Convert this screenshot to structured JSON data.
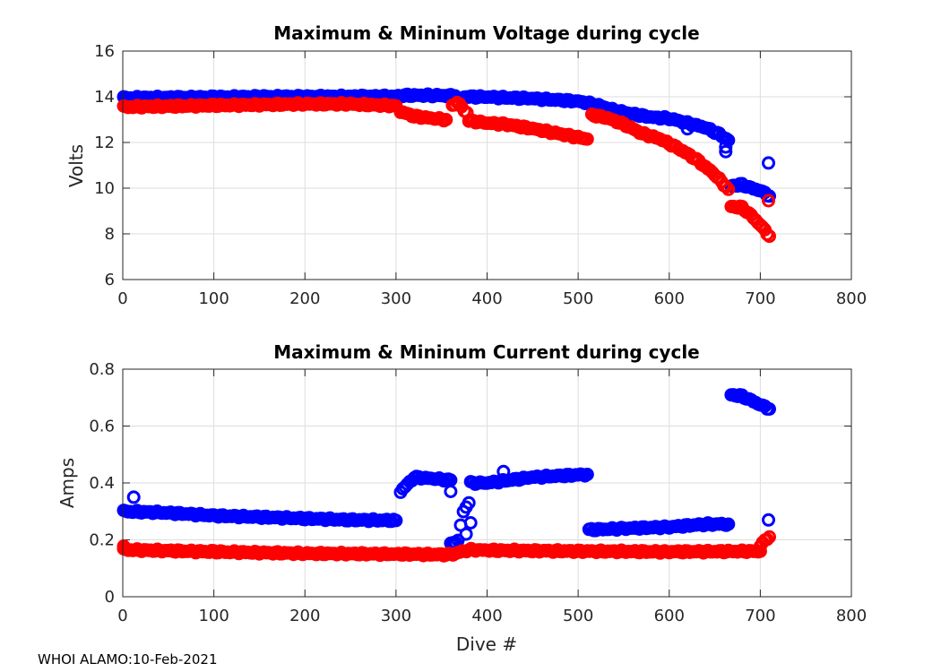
{
  "footer_text": "WHOI ALAMO:10-Feb-2021",
  "shared_xlabel": "Dive #",
  "colors": {
    "max": "#0000ff",
    "min": "#ff0000"
  },
  "chart_data": [
    {
      "type": "scatter",
      "title": "Maximum & Mininum Voltage during cycle",
      "xlabel": "",
      "ylabel": "Volts",
      "xlim": [
        0,
        800
      ],
      "ylim": [
        6,
        16
      ],
      "xticks": [
        0,
        100,
        200,
        300,
        400,
        500,
        600,
        700,
        800
      ],
      "yticks": [
        6,
        8,
        10,
        12,
        14,
        16
      ],
      "grid": true,
      "series": [
        {
          "name": "Maximum",
          "color": "#0000ff",
          "segments": [
            {
              "x": [
                1,
                100,
                150,
                300,
                310,
                340,
                365
              ],
              "y": [
                13.95,
                13.98,
                14.0,
                14.02,
                14.06,
                14.06,
                14.04
              ]
            },
            {
              "x": [
                375,
                400,
                450,
                480,
                500,
                520,
                540,
                560,
                580,
                600,
                620,
                640,
                655,
                665
              ],
              "y": [
                14.0,
                13.99,
                13.92,
                13.85,
                13.8,
                13.65,
                13.4,
                13.25,
                13.1,
                13.05,
                12.85,
                12.65,
                12.35,
                12.1
              ]
            },
            {
              "x": [
                668,
                680,
                690,
                700,
                710
              ],
              "y": [
                10.1,
                10.15,
                10.0,
                9.9,
                9.65
              ]
            }
          ],
          "outliers": [
            {
              "x": 662,
              "y": 11.6
            },
            {
              "x": 662,
              "y": 11.8
            },
            {
              "x": 620,
              "y": 12.6
            },
            {
              "x": 709,
              "y": 11.1
            }
          ]
        },
        {
          "name": "Minimum",
          "color": "#ff0000",
          "segments": [
            {
              "x": [
                1,
                100,
                200,
                250,
                300
              ],
              "y": [
                13.55,
                13.62,
                13.68,
                13.68,
                13.6
              ]
            },
            {
              "x": [
                305,
                320,
                340,
                355
              ],
              "y": [
                13.35,
                13.15,
                13.05,
                13.0
              ]
            },
            {
              "x": [
                362,
                367,
                372,
                378
              ],
              "y": [
                13.65,
                13.75,
                13.55,
                13.3
              ]
            },
            {
              "x": [
                380,
                400,
                420,
                450,
                470,
                490,
                510
              ],
              "y": [
                12.95,
                12.85,
                12.8,
                12.6,
                12.45,
                12.3,
                12.15
              ]
            },
            {
              "x": [
                515,
                530,
                550,
                570,
                590,
                610,
                630,
                650,
                665
              ],
              "y": [
                13.2,
                13.1,
                12.8,
                12.4,
                12.15,
                11.75,
                11.25,
                10.6,
                9.95
              ]
            },
            {
              "x": [
                668,
                680,
                690,
                700,
                710
              ],
              "y": [
                9.2,
                9.15,
                8.8,
                8.4,
                7.9
              ]
            }
          ],
          "outliers": [
            {
              "x": 709,
              "y": 9.45
            }
          ]
        }
      ]
    },
    {
      "type": "scatter",
      "title": "Maximum & Mininum Current during cycle",
      "xlabel": "Dive #",
      "ylabel": "Amps",
      "xlim": [
        0,
        800
      ],
      "ylim": [
        0,
        0.8
      ],
      "xticks": [
        0,
        100,
        200,
        300,
        400,
        500,
        600,
        700,
        800
      ],
      "yticks": [
        0,
        0.2,
        0.4,
        0.6,
        0.8
      ],
      "grid": true,
      "series": [
        {
          "name": "Maximum",
          "color": "#0000ff",
          "segments": [
            {
              "x": [
                1,
                50,
                100,
                150,
                200,
                250,
                300
              ],
              "y": [
                0.3,
                0.295,
                0.285,
                0.28,
                0.275,
                0.27,
                0.268
              ]
            },
            {
              "x": [
                305,
                320,
                340,
                360
              ],
              "y": [
                0.37,
                0.42,
                0.415,
                0.41
              ]
            },
            {
              "x": [
                360,
                368,
                374,
                380
              ],
              "y": [
                0.185,
                0.2,
                0.3,
                0.33
              ]
            },
            {
              "x": [
                382,
                400,
                450,
                480,
                510
              ],
              "y": [
                0.4,
                0.4,
                0.42,
                0.425,
                0.43
              ]
            },
            {
              "x": [
                512,
                550,
                600,
                640,
                665
              ],
              "y": [
                0.235,
                0.24,
                0.245,
                0.255,
                0.255
              ]
            },
            {
              "x": [
                668,
                680,
                690,
                700,
                710
              ],
              "y": [
                0.71,
                0.705,
                0.69,
                0.675,
                0.66
              ]
            }
          ],
          "outliers": [
            {
              "x": 12,
              "y": 0.35
            },
            {
              "x": 377,
              "y": 0.22
            },
            {
              "x": 382,
              "y": 0.26
            },
            {
              "x": 418,
              "y": 0.44
            },
            {
              "x": 709,
              "y": 0.27
            },
            {
              "x": 360,
              "y": 0.37
            }
          ]
        },
        {
          "name": "Minimum",
          "color": "#ff0000",
          "segments": [
            {
              "x": [
                1,
                100,
                200,
                300,
                360,
                380,
                400,
                500,
                600,
                700
              ],
              "y": [
                0.165,
                0.158,
                0.152,
                0.15,
                0.148,
                0.165,
                0.163,
                0.16,
                0.158,
                0.16
              ]
            },
            {
              "x": [
                700,
                705,
                710
              ],
              "y": [
                0.175,
                0.2,
                0.21
              ]
            }
          ],
          "outliers": [
            {
              "x": 1,
              "y": 0.178
            }
          ]
        }
      ]
    }
  ]
}
